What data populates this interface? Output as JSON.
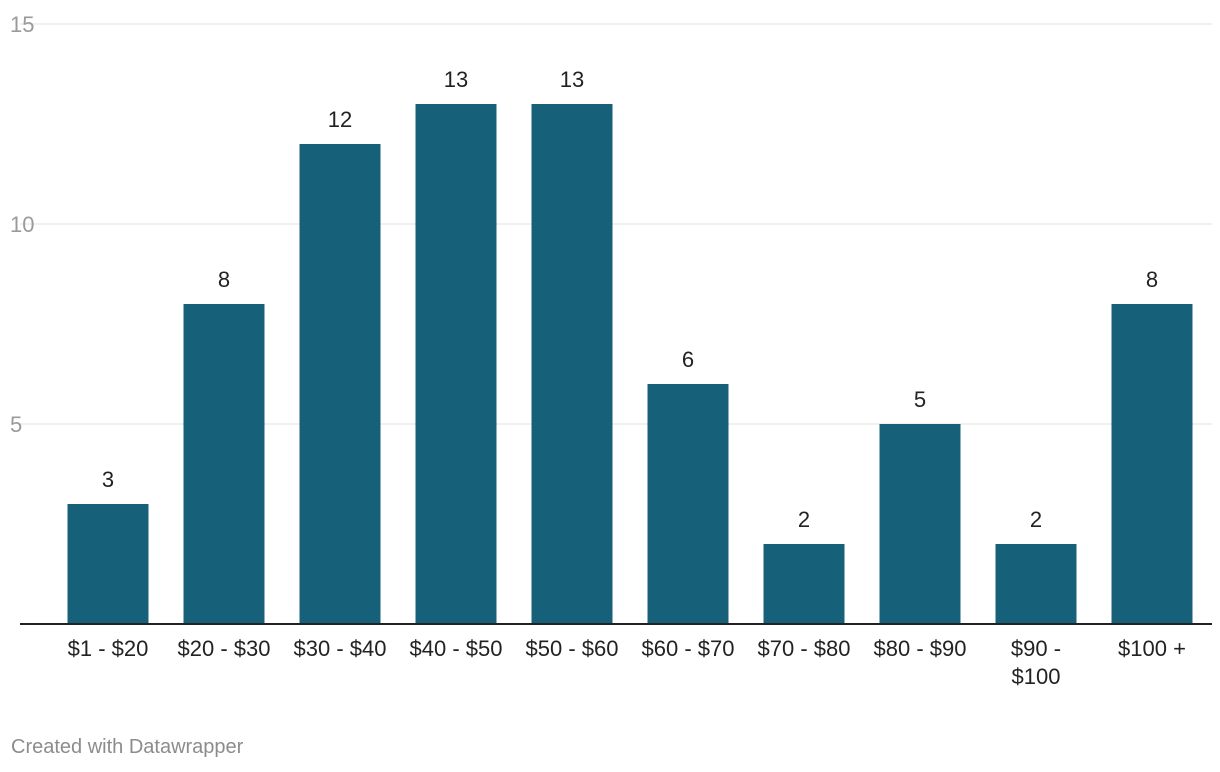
{
  "chart_data": {
    "type": "bar",
    "categories": [
      "$1 - $20",
      "$20 - $30",
      "$30 - $40",
      "$40 - $50",
      "$50 - $60",
      "$60 - $70",
      "$70 - $80",
      "$80 - $90",
      "$90 - $100",
      "$100 +"
    ],
    "values": [
      3,
      8,
      12,
      13,
      13,
      6,
      2,
      5,
      2,
      8
    ],
    "ylim": [
      0,
      15
    ],
    "yticks": [
      5,
      10,
      15
    ],
    "grid": true,
    "bar_color": "#17607a",
    "title": "",
    "xlabel": "",
    "ylabel": ""
  },
  "footer": {
    "credit": "Created with Datawrapper"
  }
}
